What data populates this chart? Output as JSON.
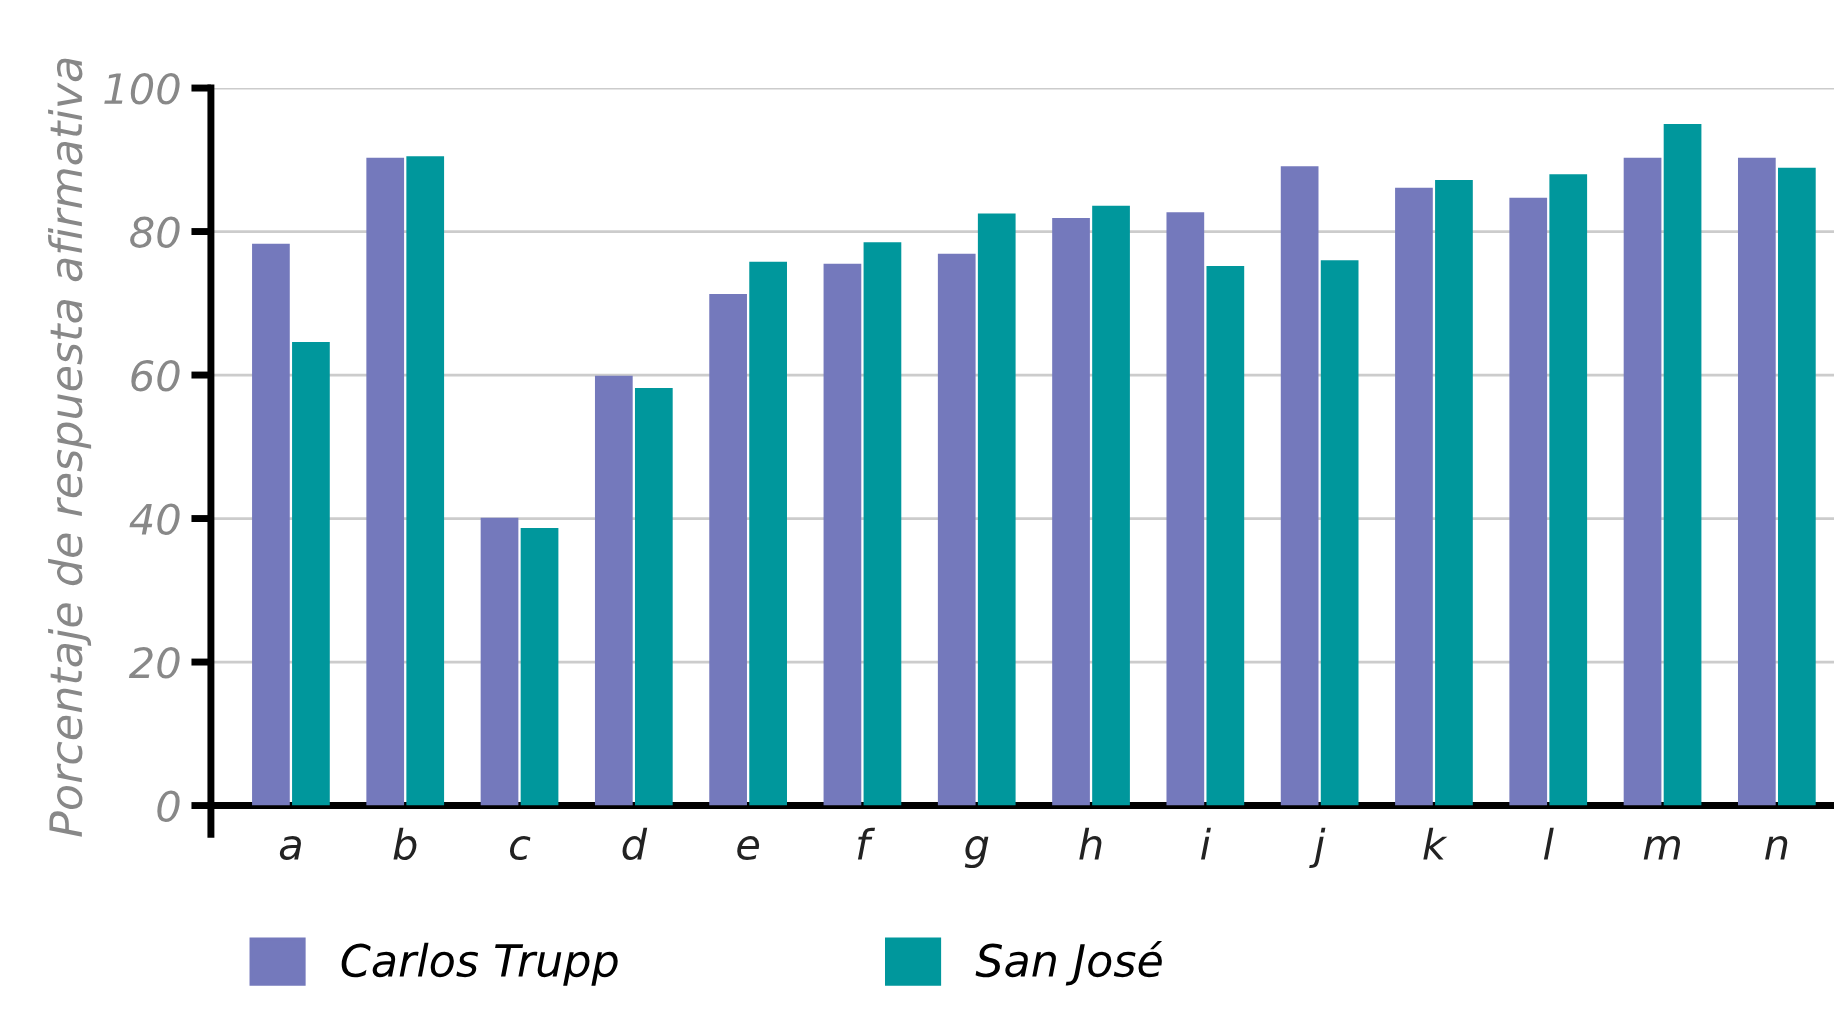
{
  "chart_data": {
    "type": "bar",
    "ylabel": "Porcentaje de respuesta afirmativa",
    "categories": [
      "a",
      "b",
      "c",
      "d",
      "e",
      "f",
      "g",
      "h",
      "i",
      "j",
      "k",
      "l",
      "m",
      "n"
    ],
    "series": [
      {
        "name": "Carlos Trupp",
        "color": "#7479bc",
        "values": [
          78.3,
          90.3,
          40.1,
          59.9,
          71.3,
          75.5,
          76.9,
          81.9,
          82.7,
          89.1,
          86.1,
          84.7,
          90.3,
          90.3
        ]
      },
      {
        "name": "San José",
        "color": "#00979c",
        "values": [
          64.6,
          90.5,
          38.7,
          58.2,
          75.8,
          78.5,
          82.5,
          83.6,
          75.2,
          76.0,
          87.2,
          88.0,
          95.0,
          88.9
        ]
      }
    ],
    "ylim": [
      0,
      100
    ],
    "yticks": [
      0,
      20,
      40,
      60,
      80,
      100
    ],
    "grid": "y",
    "legend": "bottom left"
  }
}
